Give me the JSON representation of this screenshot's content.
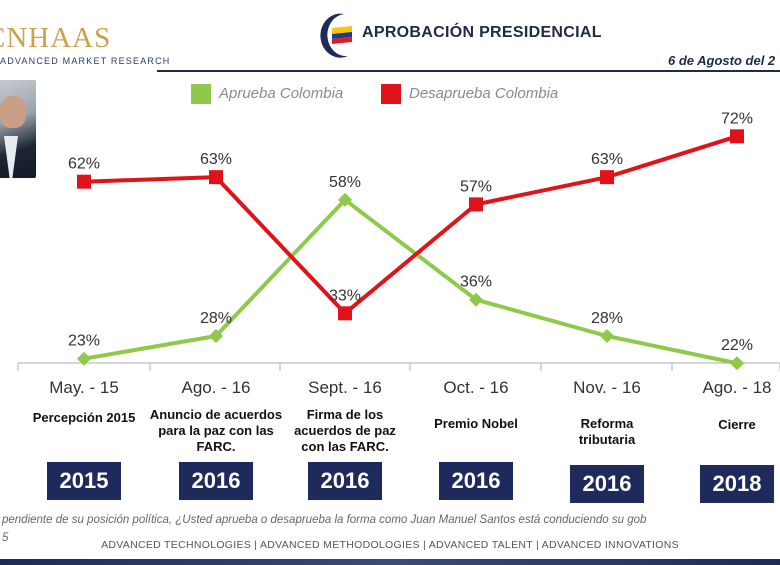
{
  "brand": {
    "name": "CNHAAS",
    "tagline": "ADVANCED MARKET RESEARCH"
  },
  "header": {
    "title": "APROBACIÓN PRESIDENCIAL",
    "date": "6 de Agosto del 2"
  },
  "chart_data": {
    "type": "line",
    "categories": [
      "May. - 15",
      "Ago. - 16",
      "Sept. - 16",
      "Oct. - 16",
      "Nov. - 16",
      "Ago. - 18"
    ],
    "series": [
      {
        "name": "Aprueba Colombia",
        "color": "#8fc94a",
        "values": [
          23,
          28,
          58,
          36,
          28,
          22
        ],
        "labels": [
          "23%",
          "28%",
          "58%",
          "36%",
          "28%",
          "22%"
        ]
      },
      {
        "name": "Desaprueba Colombia",
        "color": "#e0121a",
        "values": [
          62,
          63,
          33,
          57,
          63,
          72
        ],
        "labels": [
          "62%",
          "63%",
          "33%",
          "57%",
          "63%",
          "72%"
        ]
      }
    ],
    "events": [
      [
        "Percepción 2015"
      ],
      [
        "Anuncio de acuerdos",
        "para la paz con las",
        "FARC."
      ],
      [
        "Firma de los",
        "acuerdos de paz",
        "con las FARC."
      ],
      [
        "Premio Nobel"
      ],
      [
        "Reforma",
        "tributaria"
      ],
      [
        "Cierre"
      ]
    ],
    "years": [
      "2015",
      "2016",
      "2016",
      "2016",
      "2016",
      "2018"
    ],
    "ylim": [
      15,
      80
    ]
  },
  "footnote": {
    "line1": "pendiente de su posición política, ¿Usted aprueba o desaprueba la forma como Juan Manuel Santos está conduciendo su gob",
    "line2": "5"
  },
  "footer": {
    "text": "ADVANCED TECHNOLOGIES  |  ADVANCED METHODOLOGIES  |  ADVANCED TALENT  |  ADVANCED INNOVATIONS"
  }
}
